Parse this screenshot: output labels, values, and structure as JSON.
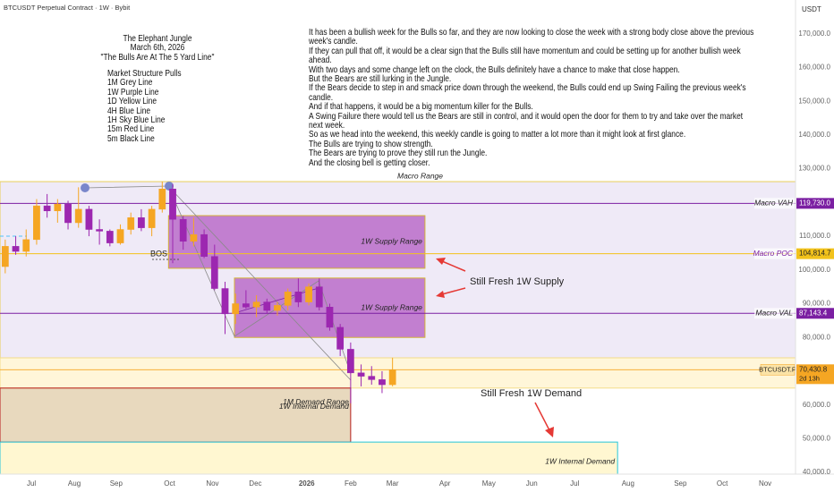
{
  "header": {
    "symbol": "BTCUSDT Perpetual Contract · 1W · Bybit",
    "currency": "USDT"
  },
  "notes": {
    "title_lines": [
      "The Elephant Jungle",
      "March 6th, 2026",
      "\"The Bulls Are At The 5 Yard Line\""
    ],
    "list_lines": [
      "Market Structure Pulls",
      "1M Grey Line",
      "1W Purple Line",
      "1D Yellow Line",
      "4H Blue Line",
      "1H Sky Blue Line",
      "15m Red Line",
      "5m Black Line"
    ],
    "paragraphs": [
      "It has been a bullish week for the Bulls so far, and they are now looking to close the week with a strong body close above the previous week's candle.",
      "If they can pull that off, it would be a clear sign that the Bulls still have momentum and could be setting up for another bullish week ahead.",
      "With two days and some change left on the clock, the Bulls definitely have a chance to make that close happen.",
      "But the Bears are still lurking in the Jungle.",
      "If the Bears decide to step in and smack price down through the weekend, the Bulls could end up Swing Failing the previous week's candle.",
      "And if that happens, it would be a big momentum killer for the Bulls.",
      "A Swing Failure there would tell us the Bears are still in control, and it would open the door for them to try and take over the market next week.",
      "So as we head into the weekend, this weekly candle is going to matter a lot more than it might look at first glance.",
      "The Bulls are trying to show strength.",
      "The Bears are trying to prove they still run the Jungle.",
      "And the closing bell is getting closer."
    ]
  },
  "annotations": {
    "bos": "BOS",
    "supply_note": "Still Fresh 1W Supply",
    "demand_note": "Still Fresh 1W Demand"
  },
  "chart_data": {
    "type": "candlestick",
    "up_color": "#f5a623",
    "down_color": "#9c27b0",
    "x": [
      0.5,
      1.5,
      2.5,
      3.5,
      4.5,
      5.5,
      6.5,
      7.5,
      8.5,
      9.5,
      10.5,
      11.5,
      12.5,
      13.5,
      14.5,
      15.5,
      16.5,
      17.5,
      18.5,
      19.5,
      20.5,
      21.5,
      22.5,
      23.5,
      24.5,
      25.5,
      26.5,
      27.5,
      28.5,
      29.5,
      30.5,
      31.5,
      32.5,
      33.5,
      34.5,
      35.5,
      36.5,
      37.5
    ],
    "open": [
      101000,
      107000,
      105500,
      109000,
      119000,
      117500,
      119500,
      114000,
      118000,
      112000,
      111500,
      108000,
      112000,
      115500,
      112500,
      118000,
      124000,
      115000,
      108500,
      110500,
      104000,
      94500,
      87000,
      90000,
      89000,
      90500,
      88000,
      89500,
      93500,
      90500,
      95000,
      89000,
      83000,
      76500,
      69500,
      68500,
      67500,
      66000
    ],
    "high": [
      109000,
      110000,
      112000,
      121000,
      122500,
      121000,
      120500,
      124500,
      119000,
      115000,
      112000,
      113500,
      117000,
      118000,
      119000,
      126200,
      125500,
      116000,
      115500,
      112000,
      107500,
      96500,
      93000,
      94000,
      92500,
      91500,
      90500,
      94500,
      97500,
      96000,
      97500,
      90000,
      84000,
      78500,
      72000,
      71500,
      70000,
      74000
    ],
    "low": [
      99000,
      104500,
      104000,
      107500,
      115500,
      114000,
      112000,
      112500,
      110000,
      107500,
      107000,
      107500,
      110500,
      111500,
      110000,
      117000,
      102000,
      106000,
      107000,
      103500,
      94000,
      81000,
      84000,
      88500,
      86000,
      87000,
      86500,
      88000,
      89000,
      89500,
      88000,
      82000,
      74500,
      60500,
      65500,
      66000,
      63500,
      65500
    ],
    "close": [
      107000,
      105500,
      109000,
      119000,
      117500,
      119500,
      114000,
      118000,
      112000,
      111500,
      108000,
      112000,
      115500,
      112500,
      118000,
      124000,
      115000,
      108500,
      110500,
      104000,
      94500,
      87000,
      90000,
      89000,
      90500,
      88000,
      89500,
      93500,
      90500,
      95000,
      89000,
      83000,
      76500,
      69500,
      68500,
      67500,
      66000,
      70430
    ],
    "xlim": [
      0,
      76
    ],
    "xticks": [
      {
        "value": 3.0,
        "label": "Jul"
      },
      {
        "value": 7.1,
        "label": "Aug"
      },
      {
        "value": 11.1,
        "label": "Sep"
      },
      {
        "value": 16.2,
        "label": "Oct"
      },
      {
        "value": 20.3,
        "label": "Nov"
      },
      {
        "value": 24.4,
        "label": "Dec"
      },
      {
        "value": 29.3,
        "label": "2026"
      },
      {
        "value": 33.5,
        "label": "Feb"
      },
      {
        "value": 37.5,
        "label": "Mar"
      },
      {
        "value": 42.5,
        "label": "Apr"
      },
      {
        "value": 46.7,
        "label": "May"
      },
      {
        "value": 50.8,
        "label": "Jun"
      },
      {
        "value": 54.9,
        "label": "Jul"
      },
      {
        "value": 60,
        "label": "Aug"
      },
      {
        "value": 65,
        "label": "Sep"
      },
      {
        "value": 69,
        "label": "Oct"
      },
      {
        "value": 73.1,
        "label": "Nov"
      }
    ],
    "ylim": [
      39500,
      180000
    ],
    "yticks": [
      {
        "value": 170000,
        "label": "170,000.0"
      },
      {
        "value": 160000,
        "label": "160,000.0"
      },
      {
        "value": 150000,
        "label": "150,000.0"
      },
      {
        "value": 140000,
        "label": "140,000.0"
      },
      {
        "value": 130000,
        "label": "130,000.0"
      },
      {
        "value": 110000,
        "label": "110,000.0"
      },
      {
        "value": 100000,
        "label": "100,000.0"
      },
      {
        "value": 90000,
        "label": "90,000.0"
      },
      {
        "value": 80000,
        "label": "80,000.0"
      },
      {
        "value": 60000,
        "label": "60,000.0"
      },
      {
        "value": 50000,
        "label": "50,000.0"
      },
      {
        "value": 40000,
        "label": "40,000.0"
      }
    ],
    "grid": false,
    "zones": [
      {
        "label": "Macro Range",
        "x": [
          0,
          76
        ],
        "y": [
          73960,
          126180
        ],
        "color": "rgba(209,196,233,0.35)",
        "border": "#e8cf5a"
      },
      {
        "x": [
          0,
          76
        ],
        "y": [
          65000,
          73960
        ],
        "color": "rgba(255,236,170,0.45)",
        "border": "#f3dc8a"
      },
      {
        "label": "1W Supply Range",
        "x": [
          16.1,
          40.6
        ],
        "y": [
          100500,
          116100
        ],
        "color": "rgba(156,39,176,0.55)",
        "border": "#d4b237"
      },
      {
        "label": "1W Supply Range",
        "x": [
          22.4,
          40.6
        ],
        "y": [
          80000,
          97600
        ],
        "color": "rgba(156,39,176,0.55)",
        "border": "#d4b237"
      },
      {
        "labels": [
          "1M Demand Range",
          "1W Internal Demand"
        ],
        "x": [
          0,
          33.5
        ],
        "y": [
          49000,
          65000
        ],
        "color": "rgba(205,170,110,0.45)",
        "border": "#b71c1c"
      },
      {
        "label": "1W Internal Demand",
        "x": [
          0,
          59
        ],
        "y": [
          39500,
          49000
        ],
        "color": "rgba(255,243,190,0.7)",
        "border": "#26c6da"
      }
    ],
    "levels": [
      {
        "label": "Macro VAH",
        "value": 119730,
        "value_label": "119,730.0",
        "color": "#7b1fa2",
        "text_color": "#222222"
      },
      {
        "label": "Macro POC",
        "value": 104814.7,
        "value_label": "104,814.7",
        "color": "#f2c21b",
        "text_color": "#7b1fa2"
      },
      {
        "label": "Macro VAL",
        "value": 87143.4,
        "value_label": "87,143.4",
        "color": "#7b1fa2",
        "text_color": "#222222"
      },
      {
        "label": "BTCUSDT.P",
        "value": 70430.8,
        "value_label": "70,430.8",
        "countdown": "2d 13h",
        "color": "#f5a623",
        "text_color": "#222222"
      }
    ]
  }
}
